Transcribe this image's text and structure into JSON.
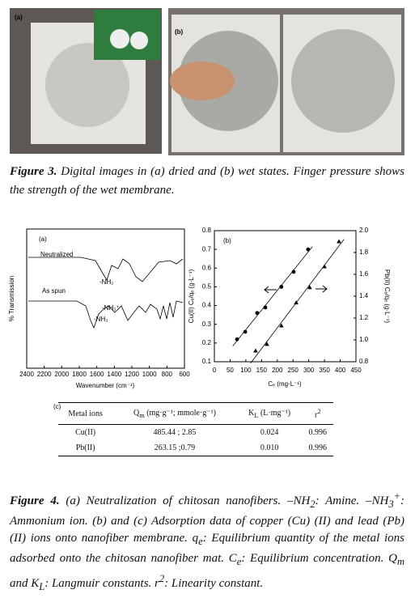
{
  "figure3": {
    "panel_labels": [
      "(a)",
      "(b)"
    ],
    "caption": {
      "label": "Figure 3.",
      "text": " Digital images in (a) dried and (b) wet states. Finger pressure shows the strength of the wet membrane."
    }
  },
  "figure4": {
    "panel_a": {
      "label": "(a)",
      "xlabel": "Wavenumber (cm⁻¹)",
      "ylabel": "% Transmission",
      "xlim": [
        2400,
        600
      ],
      "xticks": [
        2400,
        2200,
        2000,
        1800,
        1600,
        1400,
        1200,
        1000,
        800,
        600
      ],
      "annotations": [
        "Neutralized",
        "As spun",
        "-NH₂",
        "-NH₃⁺",
        "-NH₃"
      ]
    },
    "panel_b": {
      "label": "(b)",
      "type": "scatter",
      "xlabel": "Cₑ (mg·L⁻¹)",
      "ylabel": "Cu(II) Cₑ/qₑ (g·L⁻¹)",
      "y2label": "Pb(II) Cₑ/qₑ (g·L⁻¹)",
      "xlim": [
        0,
        450
      ],
      "xticks": [
        0,
        50,
        100,
        150,
        200,
        250,
        300,
        350,
        400,
        450
      ],
      "ylim": [
        0.1,
        0.8
      ],
      "yticks": [
        0.1,
        0.2,
        0.3,
        0.4,
        0.5,
        0.6,
        0.7,
        0.8
      ],
      "y2lim": [
        0.8,
        2.0
      ],
      "y2ticks": [
        0.8,
        {
          "value": 1.0,
          "label": "1.0"
        },
        1.2,
        1.4,
        1.6,
        1.8,
        {
          "value": 2.0,
          "label": "2.0"
        }
      ],
      "series": [
        {
          "marker": "circle",
          "color": "#000000",
          "x": [
            72,
            98,
            136,
            162,
            213,
            252,
            298
          ],
          "values": [
            0.22,
            0.26,
            0.36,
            0.39,
            0.5,
            0.58,
            0.7
          ]
        },
        {
          "marker": "triangle",
          "color": "#000000",
          "axis": "y2",
          "x": [
            131,
            167,
            213,
            260,
            303,
            350,
            396
          ],
          "values": [
            0.9,
            0.96,
            1.13,
            1.34,
            1.48,
            1.67,
            1.9
          ]
        }
      ]
    },
    "panel_c": {
      "label": "(c)",
      "columns": [
        "Metal ions",
        [
          "Q",
          "m",
          " (mg·g⁻¹; mmole·g⁻¹)"
        ],
        [
          "K",
          "L",
          " (L·mg⁻¹)"
        ],
        [
          "r",
          "2"
        ]
      ],
      "rows": [
        [
          "Cu(II)",
          "485.44 ; 2.85",
          "0.024",
          "0.996"
        ],
        [
          "Pb(II)",
          "263.15 ;0.79",
          "0.010",
          "0.996"
        ]
      ]
    },
    "caption": [
      "Figure 4.",
      " (a) Neutralization of chitosan nanofibers. –NH",
      "2",
      ": Amine. –NH",
      "3",
      "+",
      ": Ammonium ion. (b) and (c) Adsorption data of copper (Cu) (II) and lead (Pb) (II) ions onto nanofiber membrane. q",
      "e",
      ": Equilibrium quantity of the metal ions adsorbed onto the chitosan nanofiber mat. C",
      "e",
      ": Equilibrium concentration. Q",
      "m",
      " and K",
      "L",
      ": Langmuir constants. r",
      "2",
      ": Linearity constant."
    ]
  }
}
